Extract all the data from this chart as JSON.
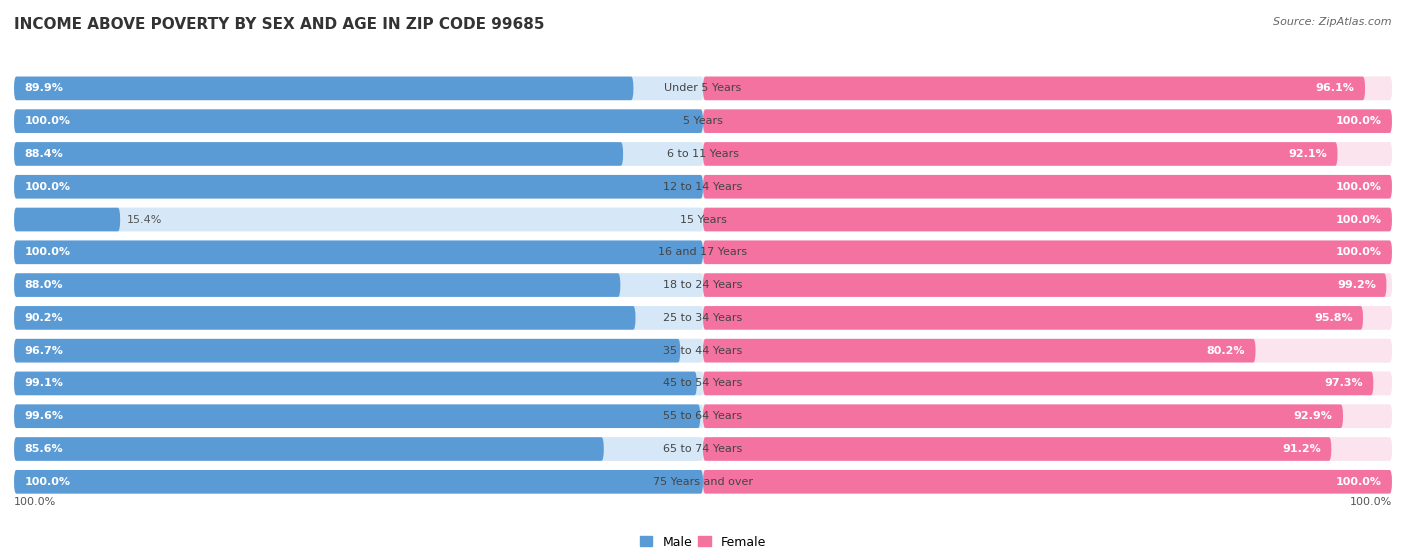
{
  "title": "INCOME ABOVE POVERTY BY SEX AND AGE IN ZIP CODE 99685",
  "source": "Source: ZipAtlas.com",
  "categories": [
    "Under 5 Years",
    "5 Years",
    "6 to 11 Years",
    "12 to 14 Years",
    "15 Years",
    "16 and 17 Years",
    "18 to 24 Years",
    "25 to 34 Years",
    "35 to 44 Years",
    "45 to 54 Years",
    "55 to 64 Years",
    "65 to 74 Years",
    "75 Years and over"
  ],
  "male_values": [
    89.9,
    100.0,
    88.4,
    100.0,
    15.4,
    100.0,
    88.0,
    90.2,
    96.7,
    99.1,
    99.6,
    85.6,
    100.0
  ],
  "female_values": [
    96.1,
    100.0,
    92.1,
    100.0,
    100.0,
    100.0,
    99.2,
    95.8,
    80.2,
    97.3,
    92.9,
    91.2,
    100.0
  ],
  "male_color": "#5b9bd5",
  "female_color": "#f472a0",
  "male_bg_color": "#d6e8f7",
  "female_bg_color": "#fce4ef",
  "male_label": "Male",
  "female_label": "Female",
  "background_color": "#ffffff",
  "row_bg_color": "#f0f0f0",
  "bar_height": 0.72,
  "title_fontsize": 11,
  "value_fontsize": 8,
  "cat_fontsize": 8,
  "source_fontsize": 8,
  "footer_male": "100.0%",
  "footer_female": "100.0%"
}
